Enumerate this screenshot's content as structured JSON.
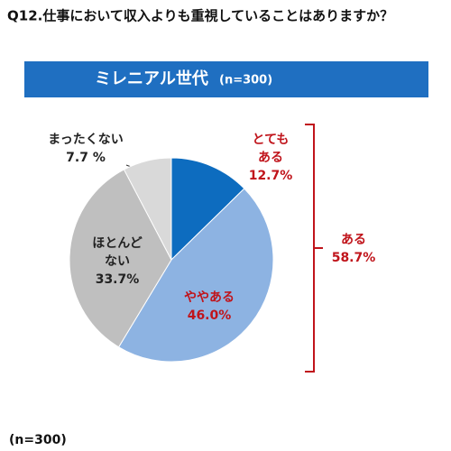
{
  "chart_data": {
    "type": "pie",
    "title": "Q12.仕事において収入よりも重視していることはありますか？",
    "subtitle": "ミレニアル世代",
    "subtitle_note": "(n=300)",
    "categories": [
      [
        "とても",
        "ある"
      ],
      [
        "ややある"
      ],
      [
        "ほとんど",
        "ない"
      ],
      [
        "まったくない"
      ]
    ],
    "values": [
      12.7,
      46.0,
      33.7,
      7.7
    ],
    "value_labels": [
      "12.7%",
      "46.0%",
      "33.7%",
      "7.7 %"
    ],
    "colors": [
      "#0d6cbf",
      "#8db3e2",
      "#bfbfbf",
      "#d9d9d9"
    ],
    "label_colors": [
      "#c0141b",
      "#c0141b",
      "#222222",
      "#222222"
    ],
    "bracket": {
      "label": "ある",
      "value": 58.7,
      "value_label": "58.7%",
      "color": "#c0141b"
    },
    "footnote": "(n=300)"
  }
}
